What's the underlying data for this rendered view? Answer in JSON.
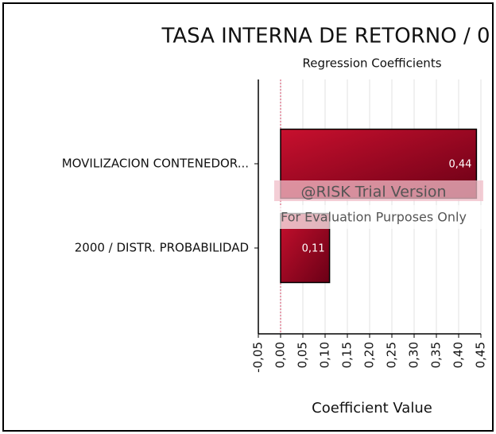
{
  "chart_data": {
    "type": "bar",
    "orientation": "horizontal",
    "title": "TASA INTERNA DE RETORNO / 0",
    "subtitle": "Regression Coefficients",
    "x_label": "Coefficient Value",
    "categories": [
      "MOVILIZACION CONTENEDOR...",
      "2000 / DISTR. PROBABILIDAD"
    ],
    "values": [
      0.44,
      0.11
    ],
    "value_labels": [
      "0,44",
      "0,11"
    ],
    "color": "#c8102e",
    "xlim": [
      -0.05,
      0.45
    ],
    "xticks": [
      {
        "value": -0.05,
        "label": "-0,05"
      },
      {
        "value": 0,
        "label": "0,00"
      },
      {
        "value": 0.05,
        "label": "0,05"
      },
      {
        "value": 0.1,
        "label": "0,10"
      },
      {
        "value": 0.15,
        "label": "0,15"
      },
      {
        "value": 0.2,
        "label": "0,20"
      },
      {
        "value": 0.25,
        "label": "0,25"
      },
      {
        "value": 0.3,
        "label": "0,30"
      },
      {
        "value": 0.35,
        "label": "0,35"
      },
      {
        "value": 0.4,
        "label": "0,40"
      },
      {
        "value": 0.45,
        "label": "0,45"
      }
    ],
    "grid": true,
    "watermark": [
      "@RISK Trial Version",
      "For Evaluation Purposes Only"
    ]
  }
}
